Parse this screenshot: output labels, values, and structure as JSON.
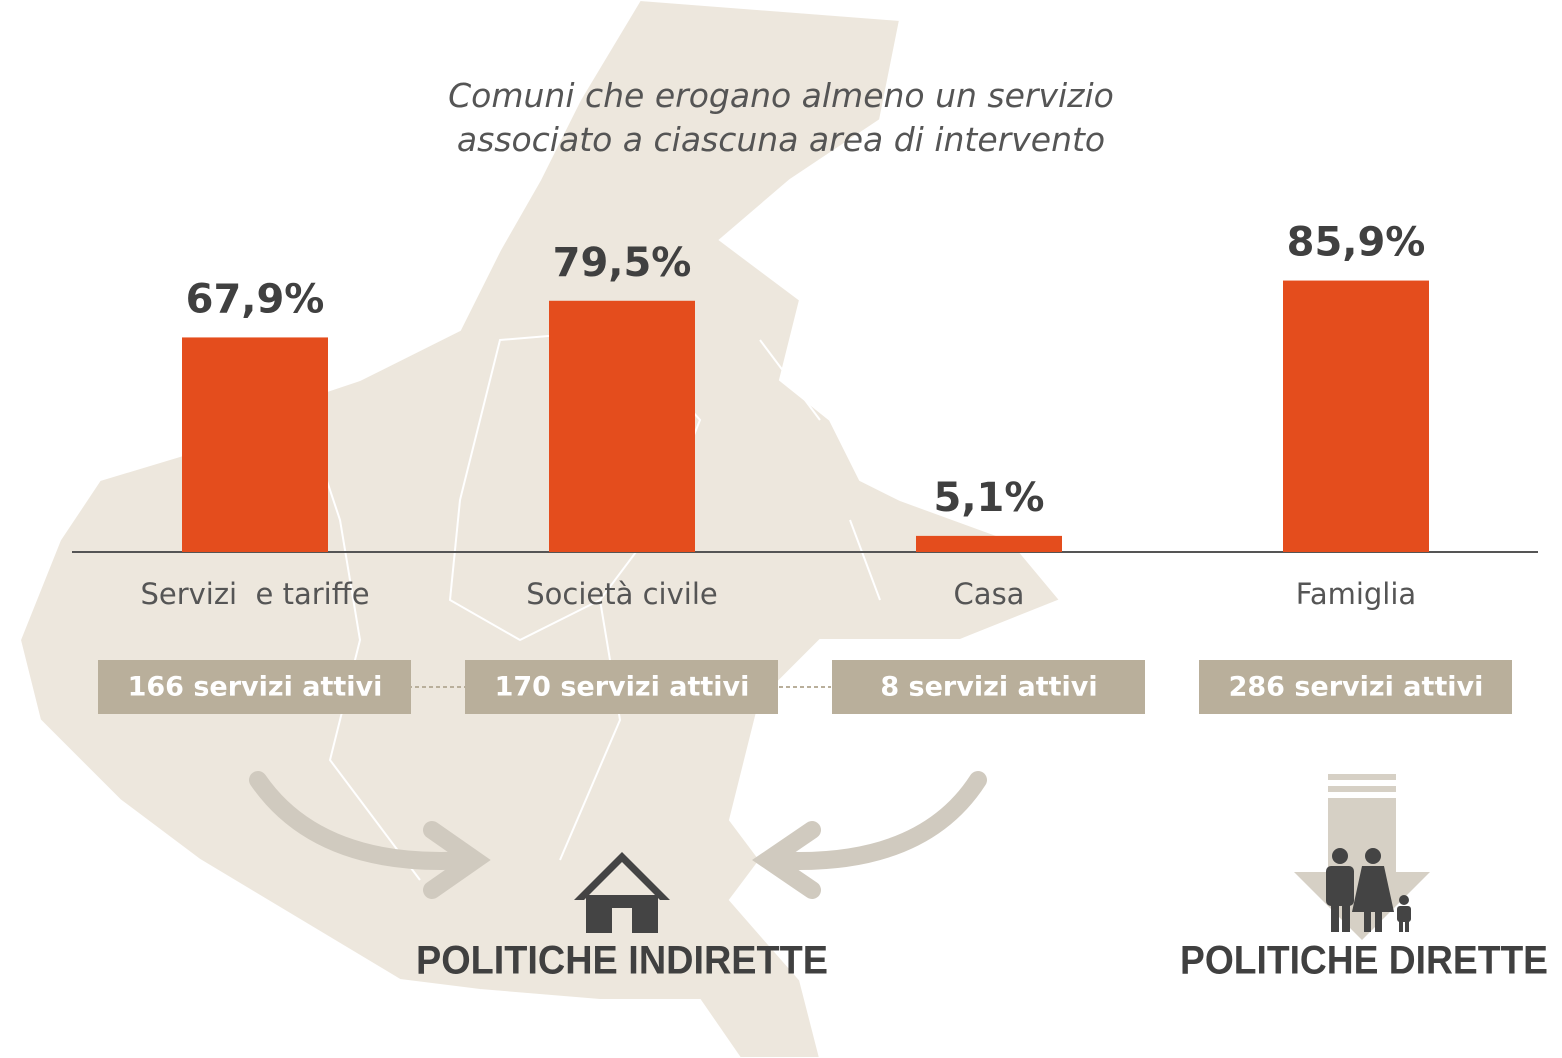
{
  "chart_data": {
    "type": "bar",
    "title": "Comuni che erogano almeno un servizio associato a ciascuna area di intervento",
    "categories": [
      "Servizi  e tariffe",
      "Società civile",
      "Casa",
      "Famiglia"
    ],
    "values": [
      67.9,
      79.5,
      5.1,
      85.9
    ],
    "value_labels": [
      "67,9%",
      "79,5%",
      "5,1%",
      "85,9%"
    ],
    "color": "#e44d1d",
    "ylim": [
      0,
      100
    ],
    "service_labels": [
      "166 servizi attivi",
      "170 servizi attivi",
      "8 servizi attivi",
      "286 servizi attivi"
    ],
    "groups": [
      "POLITICHE INDIRETTE",
      "POLITICHE DIRETTE"
    ]
  }
}
